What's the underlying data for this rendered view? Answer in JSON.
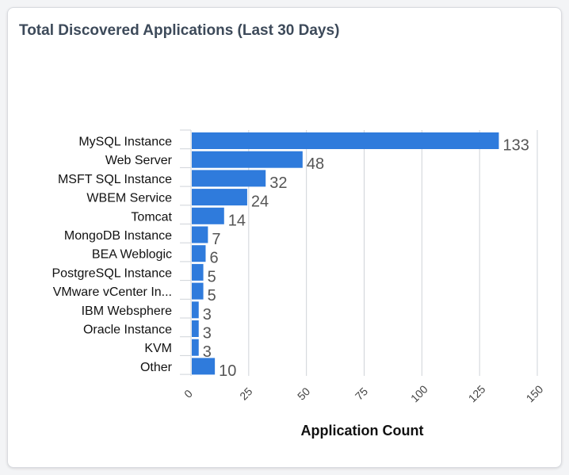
{
  "widget": {
    "title": "Total Discovered Applications (Last 30 Days)"
  },
  "colors": {
    "bar": "#2f7bdc",
    "grid": "#cfd3d8",
    "value_text": "#555555"
  },
  "chart_data": {
    "type": "bar",
    "orientation": "horizontal",
    "categories": [
      "MySQL Instance",
      "Web Server",
      "MSFT SQL Instance",
      "WBEM Service",
      "Tomcat",
      "MongoDB Instance",
      "BEA Weblogic",
      "PostgreSQL Instance",
      "VMware vCenter In...",
      "IBM Websphere",
      "Oracle Instance",
      "KVM",
      "Other"
    ],
    "values": [
      133,
      48,
      32,
      24,
      14,
      7,
      6,
      5,
      5,
      3,
      3,
      3,
      10
    ],
    "title": "Total Discovered Applications (Last 30 Days)",
    "xlabel": "Application Count",
    "ylabel": "",
    "xlim": [
      0,
      150
    ],
    "xticks": [
      0,
      25,
      50,
      75,
      100,
      125,
      150
    ],
    "grid": true,
    "data_labels": true,
    "legend": "none"
  }
}
